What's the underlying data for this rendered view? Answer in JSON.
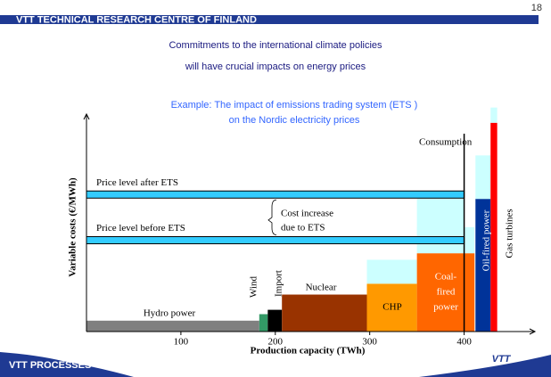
{
  "header": {
    "org": "VTT TECHNICAL RESEARCH CENTRE OF FINLAND",
    "page": "18",
    "footer": "VTT PROCESSES",
    "logo": "VTT"
  },
  "title_lines": [
    "Commitments to the international climate policies",
    "will have crucial impacts on energy prices"
  ],
  "chart_data": {
    "type": "merit-order",
    "subtitle_lines": [
      "Example: The impact of emissions trading system (ETS )",
      "on the Nordic electricity prices"
    ],
    "y_label": "Variable costs (€/MWh)",
    "x_label": "Production capacity (TWh)",
    "xlim": [
      0,
      475
    ],
    "ylim": [
      0,
      100
    ],
    "xticks": [
      100,
      200,
      300,
      400
    ],
    "increase_color": "#ccffff",
    "blocks": [
      {
        "label": [
          "Hydro power"
        ],
        "x0": 0,
        "x1": 183,
        "value": 5,
        "color": "#808080"
      },
      {
        "label": [
          "Wind"
        ],
        "x0": 183,
        "x1": 192,
        "value": 8,
        "color": "#339966"
      },
      {
        "label": [
          "Import"
        ],
        "x0": 192,
        "x1": 207,
        "value": 10,
        "color": "#000000"
      },
      {
        "label": [
          "Nuclear"
        ],
        "x0": 207,
        "x1": 297,
        "value": 17,
        "color": "#993300"
      },
      {
        "label": [
          "CHP"
        ],
        "x0": 297,
        "x1": 350,
        "value": 22,
        "increase": 11,
        "color": "#ff9900"
      },
      {
        "label": [
          "Coal-",
          "fired",
          "power"
        ],
        "x0": 350,
        "x1": 411,
        "value": 36,
        "increase": 12,
        "color": "#ff6600"
      },
      {
        "label": [
          "Oil-fired power"
        ],
        "x0": 412,
        "x1": 428,
        "value": 61,
        "increase": 20,
        "color": "#003399"
      },
      {
        "label": [
          "Gas turbines"
        ],
        "x0": 428,
        "x1": 435,
        "value": 96,
        "increase": 7,
        "color": "#ff0000"
      }
    ],
    "price_lines": [
      {
        "label": "Price level after ETS",
        "value": 63
      },
      {
        "label": "Price level before ETS",
        "value": 42
      }
    ],
    "annotation_lines": [
      "Cost increase",
      "due to ETS"
    ],
    "consumption": {
      "label": "Consumption",
      "value": 400
    }
  }
}
